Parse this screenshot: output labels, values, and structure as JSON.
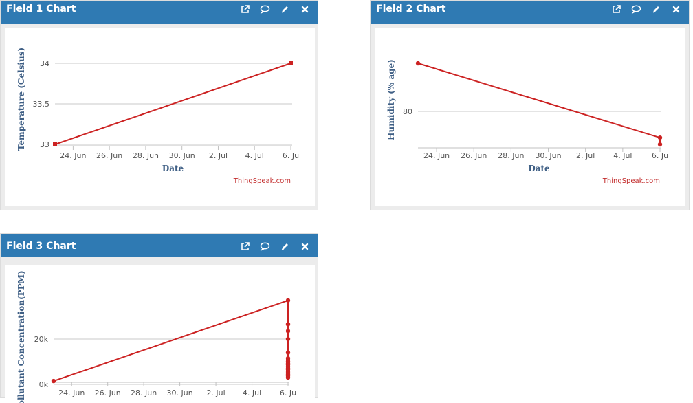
{
  "panels": [
    {
      "title": "Field 1 Chart"
    },
    {
      "title": "Field 2 Chart"
    },
    {
      "title": "Field 3 Chart"
    }
  ],
  "tool_icons": [
    "external-link-icon",
    "comment-icon",
    "pencil-icon",
    "close-icon"
  ],
  "credit": "ThingSpeak.com",
  "colors": {
    "header": "#2f7ab3",
    "series": "#cc2222",
    "grid": "#c8c8c8"
  },
  "chart_data": [
    {
      "type": "line",
      "xlabel": "Date",
      "ylabel": "Temperature (Celsius)",
      "x_ticks": [
        "24. Jun",
        "26. Jun",
        "28. Jun",
        "30. Jun",
        "2. Jul",
        "4. Jul",
        "6. Ju"
      ],
      "y_ticks": [
        "33",
        "33.5",
        "34"
      ],
      "ylim": [
        33,
        34
      ],
      "grid": true,
      "series": [
        {
          "x": [
            "23. Jun",
            "6. Jul"
          ],
          "y": [
            33,
            34
          ]
        }
      ]
    },
    {
      "type": "line",
      "xlabel": "Date",
      "ylabel": "Humidity (% age)",
      "x_ticks": [
        "24. Jun",
        "26. Jun",
        "28. Jun",
        "30. Jun",
        "2. Jul",
        "4. Jul",
        "6. Ju"
      ],
      "y_ticks": [
        "80"
      ],
      "grid": true,
      "series": [
        {
          "x": [
            "23. Jun",
            "6. Jul",
            "6. Jul"
          ],
          "y": [
            87,
            76,
            75
          ]
        }
      ]
    },
    {
      "type": "line",
      "xlabel": "",
      "ylabel": "Pollutant Concentration(PPM)",
      "x_ticks": [
        "24. Jun",
        "26. Jun",
        "28. Jun",
        "30. Jun",
        "2. Jul",
        "4. Jul",
        "6. Ju"
      ],
      "y_ticks": [
        "0k",
        "20k"
      ],
      "grid": true,
      "series": [
        {
          "x": [
            "23. Jun",
            "6. Jul",
            "6. Jul",
            "6. Jul",
            "6. Jul",
            "6. Jul",
            "6. Jul",
            "6. Jul",
            "6. Jul",
            "6. Jul",
            "6. Jul",
            "6. Jul",
            "6. Jul",
            "6. Jul",
            "6. Jul",
            "6. Jul",
            "6. Jul",
            "6. Jul",
            "6. Jul"
          ],
          "y": [
            1500,
            37000,
            26500,
            23500,
            20000,
            14000,
            11500,
            10800,
            10000,
            9300,
            8600,
            7900,
            7200,
            6500,
            5800,
            5100,
            4400,
            3700,
            3000
          ]
        }
      ]
    }
  ]
}
